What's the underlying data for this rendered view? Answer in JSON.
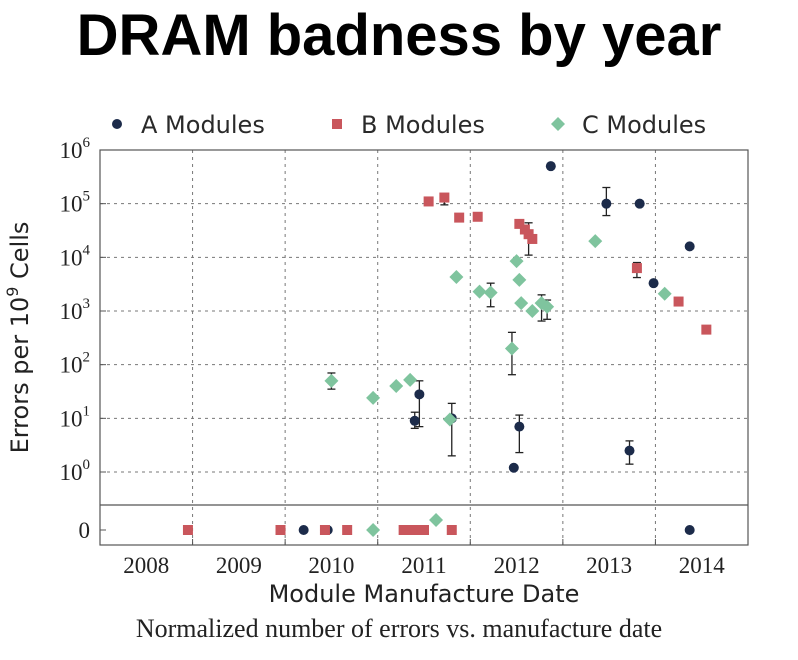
{
  "slide_title": "DRAM badness by year",
  "caption": "Normalized number of errors vs. manufacture date",
  "chart_data": {
    "type": "scatter",
    "xlabel": "Module Manufacture Date",
    "ylabel_prefix": "Errors per 10",
    "ylabel_exp": "9",
    "ylabel_suffix": " Cells",
    "x_ticks": [
      "2008",
      "2009",
      "2010",
      "2011",
      "2012",
      "2013",
      "2014"
    ],
    "y_scale": "log with zero band",
    "y_ticks": [
      {
        "base": "0",
        "exp": ""
      },
      {
        "base": "10",
        "exp": "0"
      },
      {
        "base": "10",
        "exp": "1"
      },
      {
        "base": "10",
        "exp": "2"
      },
      {
        "base": "10",
        "exp": "3"
      },
      {
        "base": "10",
        "exp": "4"
      },
      {
        "base": "10",
        "exp": "5"
      },
      {
        "base": "10",
        "exp": "6"
      }
    ],
    "xlim": [
      2007.5,
      2014.5
    ],
    "ylim_log": [
      0,
      6
    ],
    "grid": true,
    "legend_position": "top",
    "series": [
      {
        "name": "A Modules",
        "color": "#1c2b4a",
        "marker": "circle",
        "points": [
          {
            "x": 2009.7,
            "y": 0
          },
          {
            "x": 2009.93,
            "y": 0
          },
          {
            "x": 2009.96,
            "y": 0
          },
          {
            "x": 2010.9,
            "y": 9,
            "err": [
              6.5,
              13
            ]
          },
          {
            "x": 2010.95,
            "y": 28,
            "err": [
              7,
              50
            ]
          },
          {
            "x": 2011.3,
            "y": 10,
            "err": [
              2,
              19
            ]
          },
          {
            "x": 2011.97,
            "y": 1.2
          },
          {
            "x": 2012.03,
            "y": 7,
            "err": [
              2.3,
              11.5
            ]
          },
          {
            "x": 2012.37,
            "y": 500000
          },
          {
            "x": 2012.97,
            "y": 100000,
            "err": [
              60000,
              200000
            ]
          },
          {
            "x": 2013.22,
            "y": 2.5,
            "err": [
              1.4,
              3.8
            ]
          },
          {
            "x": 2013.33,
            "y": 100000
          },
          {
            "x": 2013.48,
            "y": 3300
          },
          {
            "x": 2013.87,
            "y": 16000
          },
          {
            "x": 2013.87,
            "y": 0
          }
        ]
      },
      {
        "name": "B Modules",
        "color": "#c9565c",
        "marker": "square",
        "points": [
          {
            "x": 2008.45,
            "y": 0
          },
          {
            "x": 2009.45,
            "y": 0
          },
          {
            "x": 2009.93,
            "y": 0
          },
          {
            "x": 2010.17,
            "y": 0
          },
          {
            "x": 2010.78,
            "y": 0
          },
          {
            "x": 2010.85,
            "y": 0
          },
          {
            "x": 2010.9,
            "y": 0
          },
          {
            "x": 2011.0,
            "y": 0
          },
          {
            "x": 2011.3,
            "y": 0
          },
          {
            "x": 2011.05,
            "y": 110000
          },
          {
            "x": 2011.22,
            "y": 130000,
            "err": [
              95000,
              140000
            ]
          },
          {
            "x": 2011.38,
            "y": 55000
          },
          {
            "x": 2011.58,
            "y": 57000,
            "err": [
              48000,
              68000
            ]
          },
          {
            "x": 2012.03,
            "y": 42000
          },
          {
            "x": 2012.09,
            "y": 33000
          },
          {
            "x": 2012.13,
            "y": 27000,
            "err": [
              11000,
              44000
            ]
          },
          {
            "x": 2012.17,
            "y": 22000
          },
          {
            "x": 2013.3,
            "y": 6300,
            "err": [
              4200,
              8000
            ]
          },
          {
            "x": 2013.75,
            "y": 1500
          },
          {
            "x": 2014.05,
            "y": 450
          }
        ]
      },
      {
        "name": "C Modules",
        "color": "#7fc49e",
        "marker": "diamond",
        "points": [
          {
            "x": 2010.0,
            "y": 50,
            "err": [
              35,
              70
            ]
          },
          {
            "x": 2010.45,
            "y": 24
          },
          {
            "x": 2010.7,
            "y": 40
          },
          {
            "x": 2010.85,
            "y": 52
          },
          {
            "x": 2011.28,
            "y": 9.5
          },
          {
            "x": 2011.35,
            "y": 4300
          },
          {
            "x": 2011.6,
            "y": 2300
          },
          {
            "x": 2011.72,
            "y": 2200,
            "err": [
              1200,
              3300
            ]
          },
          {
            "x": 2011.95,
            "y": 200,
            "err": [
              65,
              400
            ]
          },
          {
            "x": 2012.0,
            "y": 8500
          },
          {
            "x": 2012.03,
            "y": 3800
          },
          {
            "x": 2012.05,
            "y": 1400
          },
          {
            "x": 2012.17,
            "y": 1000
          },
          {
            "x": 2012.27,
            "y": 1400,
            "err": [
              650,
              2000
            ]
          },
          {
            "x": 2012.33,
            "y": 1200,
            "err": [
              700,
              1600
            ]
          },
          {
            "x": 2012.85,
            "y": 20000
          },
          {
            "x": 2013.6,
            "y": 2100
          },
          {
            "x": 2011.13,
            "y": 0.02
          },
          {
            "x": 2010.45,
            "y": 0
          }
        ]
      }
    ]
  }
}
